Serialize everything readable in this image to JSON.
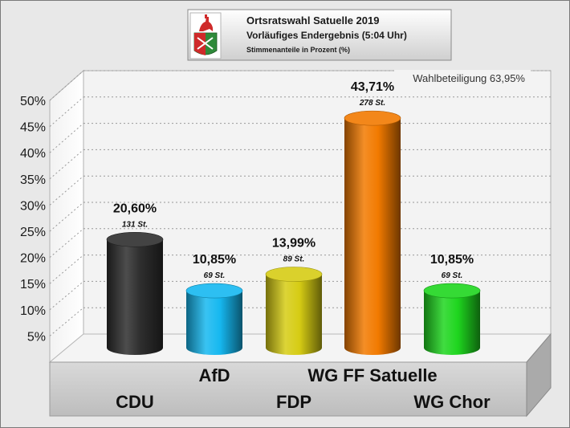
{
  "header": {
    "title": "Ortsratswahl Satuelle 2019",
    "subtitle": "Vorläufiges Endergebnis (5:04 Uhr)",
    "note": "Stimmenanteile in Prozent (%)",
    "logo": "coat-of-arms-icon"
  },
  "turnout_text": "Wahlbeteiligung 63,95%",
  "colors": {
    "background": "#e8e8e8",
    "plot_back": "#f3f3f3",
    "grid": "#9a9a9a",
    "CDU": "#2e2e2e",
    "AfD": "#16b8f0",
    "FDP": "#d6cc14",
    "WG FF Satuelle": "#f27a00",
    "WG Chor": "#1fd61f"
  },
  "chart_data": {
    "type": "bar",
    "title": "Ortsratswahl Satuelle 2019",
    "subtitle": "Vorläufiges Endergebnis (5:04 Uhr)",
    "ylabel": "Stimmenanteile in Prozent (%)",
    "ylim": [
      0,
      50
    ],
    "yticks": [
      "5%",
      "10%",
      "15%",
      "20%",
      "25%",
      "30%",
      "35%",
      "40%",
      "45%",
      "50%"
    ],
    "grid": true,
    "categories": [
      "CDU",
      "AfD",
      "FDP",
      "WG FF Satuelle",
      "WG Chor"
    ],
    "values": [
      20.6,
      10.85,
      13.99,
      43.71,
      10.85
    ],
    "value_labels": [
      "20,60%",
      "10,85%",
      "13,99%",
      "43,71%",
      "10,85%"
    ],
    "votes_labels": [
      "131 St.",
      "69 St.",
      "89 St.",
      "278 St.",
      "69 St."
    ]
  }
}
